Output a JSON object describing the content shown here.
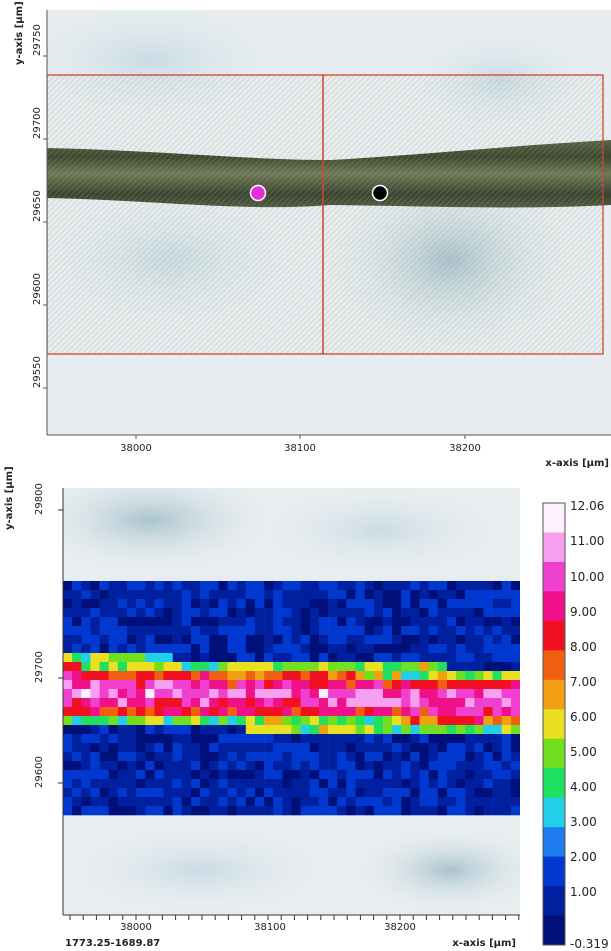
{
  "top_plot": {
    "y_axis_label": "y-axis [µm]",
    "x_axis_label": "x-axis [µm]",
    "y_ticks": [
      "29750",
      "29700",
      "29650",
      "29600",
      "29550"
    ],
    "x_ticks": [
      "38000",
      "38100",
      "38200"
    ]
  },
  "bottom_plot": {
    "y_axis_label": "y-axis [µm]",
    "x_axis_label": "x-axis [µm]",
    "y_ticks": [
      "29800",
      "29700",
      "29600"
    ],
    "x_ticks": [
      "38000",
      "38100",
      "38200"
    ],
    "colorbar_labels": [
      "12.06",
      "11.00",
      "10.00",
      "9.00",
      "8.00",
      "7.00",
      "6.00",
      "5.00",
      "4.00",
      "3.00",
      "2.00",
      "1.00",
      "-0.319"
    ],
    "coordinates": "1773.25-1689.87"
  }
}
